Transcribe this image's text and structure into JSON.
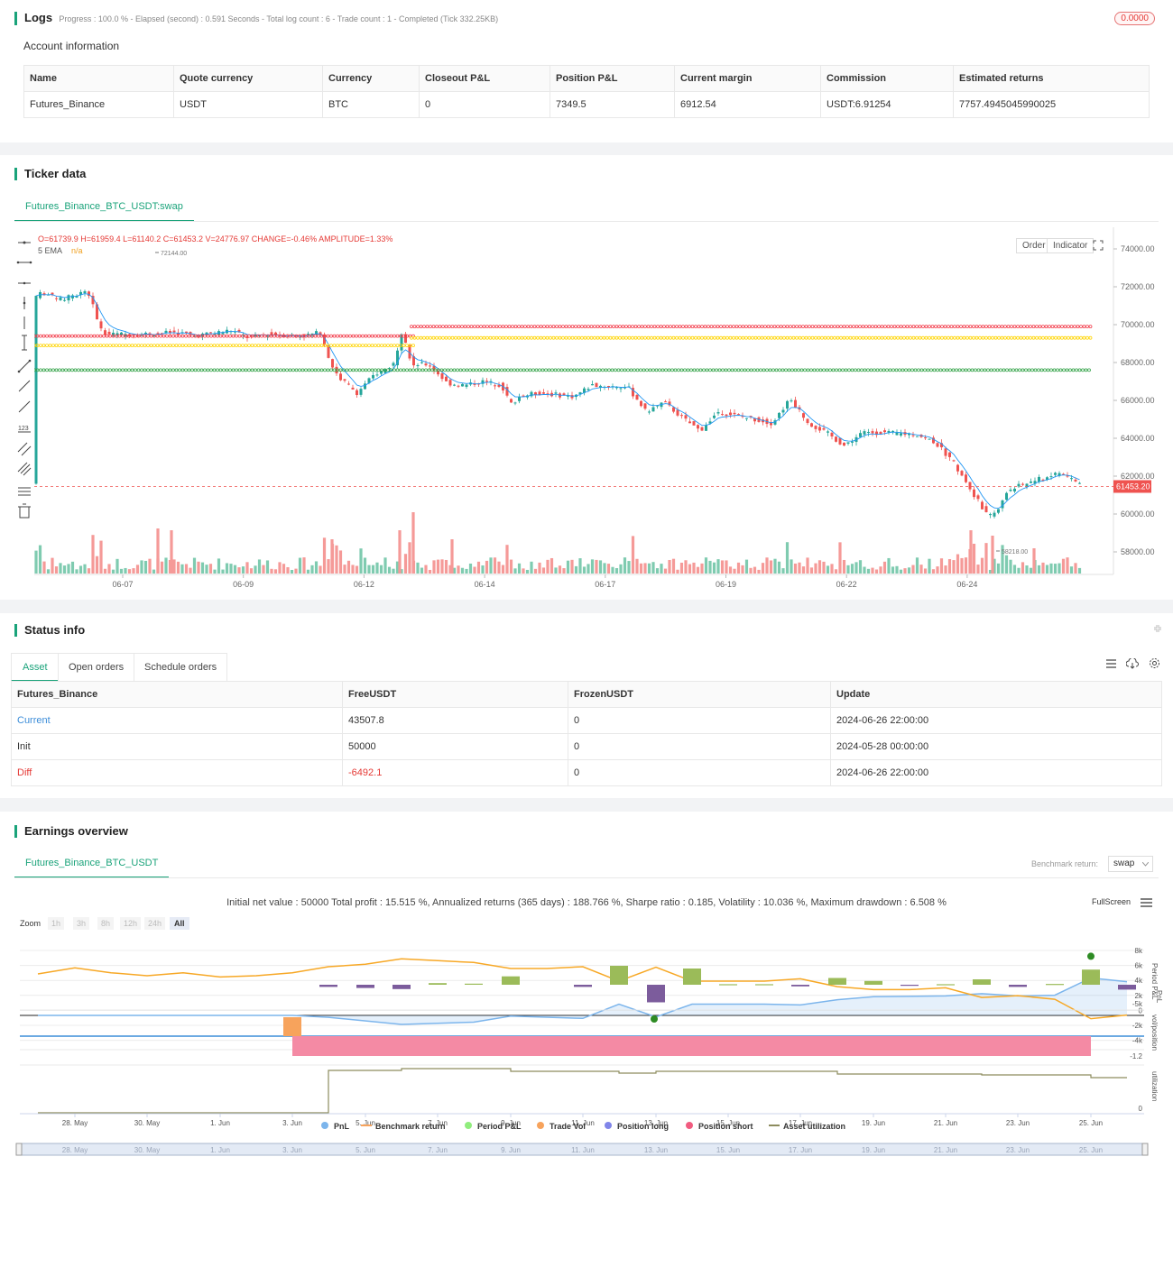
{
  "logs": {
    "title": "Logs",
    "progress": "Progress : 100.0 % - Elapsed (second) : 0.591 Seconds - Total log count : 6 - Trade count : 1 - Completed (Tick 332.25KB)",
    "badge": "0.0000"
  },
  "account": {
    "title": "Account information",
    "headers": [
      "Name",
      "Quote currency",
      "Currency",
      "Closeout P&L",
      "Position P&L",
      "Current margin",
      "Commission",
      "Estimated returns"
    ],
    "row": [
      "Futures_Binance",
      "USDT",
      "BTC",
      "0",
      "7349.5",
      "6912.54",
      "USDT:6.91254",
      "7757.4945045990025"
    ]
  },
  "ticker": {
    "title": "Ticker data",
    "tab": "Futures_Binance_BTC_USDT:swap",
    "ohlc": "O=61739.9 H=61959.4 L=61140.2 C=61453.2 V=24776.97 CHANGE=-0.46% AMPLITUDE=1.33%",
    "ema_label": "5 EMA",
    "ema_value": "n/a",
    "order_btn": "Order",
    "indicator_btn": "Indicator",
    "y_ticks": [
      "74000.00",
      "72000.00",
      "70000.00",
      "68000.00",
      "66000.00",
      "64000.00",
      "62000.00",
      "60000.00",
      "58000.00"
    ],
    "x_ticks": [
      "06-07",
      "06-09",
      "06-12",
      "06-14",
      "06-17",
      "06-19",
      "06-22",
      "06-24"
    ],
    "high_label": "72144.00",
    "low_label": "58218.00",
    "last_price": "61453.20",
    "colors": {
      "up": "#26a69a",
      "down": "#ef5350",
      "red_line": "#f23645",
      "yellow_line": "#ffd400",
      "green_line": "#2ea043",
      "ema": "#2196f3"
    }
  },
  "status": {
    "title": "Status info",
    "tabs": [
      "Asset",
      "Open orders",
      "Schedule orders"
    ],
    "headers": [
      "Futures_Binance",
      "FreeUSDT",
      "FrozenUSDT",
      "Update"
    ],
    "rows": [
      [
        "Current",
        "43507.8",
        "0",
        "2024-06-26 22:00:00"
      ],
      [
        "Init",
        "50000",
        "0",
        "2024-05-28 00:00:00"
      ],
      [
        "Diff",
        "-6492.1",
        "0",
        "2024-06-26 22:00:00"
      ]
    ]
  },
  "earnings": {
    "title": "Earnings overview",
    "tab": "Futures_Binance_BTC_USDT",
    "benchmark_label": "Benchmark return:",
    "benchmark_value": "swap",
    "summary": "Initial net value : 50000 Total profit : 15.515 %, Annualized returns (365 days) : 188.766 %, Sharpe ratio : 0.185, Volatility : 10.036 %, Maximum drawdown : 6.508 %",
    "fullscreen": "FullScreen",
    "zoom_label": "Zoom",
    "zoom_options": [
      "1h",
      "3h",
      "8h",
      "12h",
      "24h",
      "All"
    ],
    "pnl_ticks": [
      "8k",
      "6k",
      "4k",
      "2k",
      "0",
      "-2k",
      "-4k"
    ],
    "period_tick": "-5k",
    "pos_tick": "-1.2",
    "util_tick": "0",
    "axis_titles": [
      "PnL",
      "Period P&L",
      "vol/position",
      "utilization"
    ],
    "x_ticks": [
      "28. May",
      "30. May",
      "1. Jun",
      "3. Jun",
      "5. Jun",
      "7. Jun",
      "9. Jun",
      "11. Jun",
      "13. Jun",
      "15. Jun",
      "17. Jun",
      "19. Jun",
      "21. Jun",
      "23. Jun",
      "25. Jun"
    ],
    "legend": [
      "PnL",
      "Benchmark return",
      "Period P&L",
      "Trade Vol",
      "Position long",
      "Position short",
      "Asset utilization"
    ],
    "legend_colors": [
      "#7cb5ec",
      "#f7a35c",
      "#90ed7d",
      "#f7a35c",
      "#8085e9",
      "#f15c80",
      "#8d8c5e"
    ]
  }
}
